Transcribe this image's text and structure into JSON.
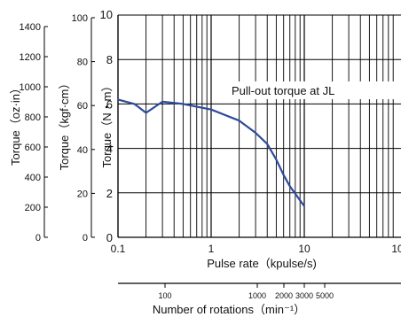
{
  "chart_data": {
    "type": "line",
    "x_scale": "log",
    "xlim": [
      0.1,
      100
    ],
    "ylim_nm": [
      0,
      10
    ],
    "grid": true,
    "xlabel": "Pulse rate（kpulse/s)",
    "secondary_xlabel": "Number of rotations（min⁻¹）",
    "x_ticks": [
      "0.1",
      "1",
      "10",
      "10"
    ],
    "secondary_x_ticks": [
      "100",
      "1000",
      "2000",
      "3000",
      "5000"
    ],
    "y_axes": [
      {
        "label": "Torque（oz·in）",
        "ticks": [
          "1400",
          "1200",
          "1000",
          "800",
          "600",
          "400",
          "200",
          "0"
        ]
      },
      {
        "label": "Torque（kgf·cm）",
        "ticks": [
          "100",
          "80",
          "60",
          "40",
          "20",
          "0"
        ]
      },
      {
        "label": "Torque（N・m）",
        "ticks": [
          "10",
          "8",
          "6",
          "4",
          "2",
          "0"
        ]
      }
    ],
    "annotation": "Pull-out torque at JL",
    "series": [
      {
        "x": [
          0.1,
          0.15,
          0.2,
          0.3,
          0.5,
          1,
          2,
          3,
          4,
          5,
          6,
          7,
          10
        ],
        "y": [
          6.2,
          6.0,
          5.6,
          6.1,
          6.0,
          5.75,
          5.25,
          4.7,
          4.2,
          3.5,
          2.8,
          2.3,
          1.4
        ]
      }
    ],
    "series_color": "#2e4b9c"
  }
}
